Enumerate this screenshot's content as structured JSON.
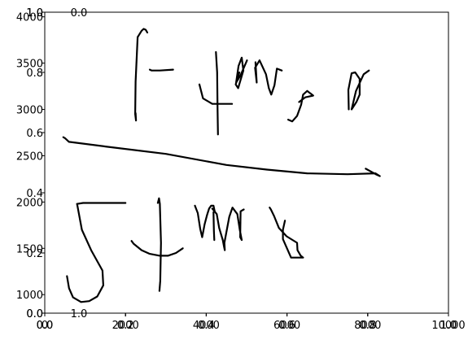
{
  "chart_data": {
    "type": "line",
    "title": "",
    "xlabel": "",
    "ylabel": "",
    "axes": [
      {
        "name": "outer-axes",
        "x_ticks": [
          {
            "value": 0.0,
            "label": "0.0"
          },
          {
            "value": 0.2,
            "label": "0.2"
          },
          {
            "value": 0.4,
            "label": "0.4"
          },
          {
            "value": 0.6,
            "label": "0.6"
          },
          {
            "value": 0.8,
            "label": "0.8"
          },
          {
            "value": 1.0,
            "label": "1.0"
          }
        ],
        "y_ticks": [
          {
            "value": 0.0,
            "label": "0.0"
          },
          {
            "value": 0.2,
            "label": "0.2"
          },
          {
            "value": 0.4,
            "label": "0.4"
          },
          {
            "value": 0.6,
            "label": "0.6"
          },
          {
            "value": 0.8,
            "label": "0.8"
          },
          {
            "value": 1.0,
            "label": "1.0"
          }
        ],
        "xlim": [
          0,
          1
        ],
        "ylim": [
          0,
          1
        ]
      },
      {
        "name": "ink-axes",
        "x_ticks": [
          {
            "value": 0,
            "label": "0"
          },
          {
            "value": 2000,
            "label": "2000"
          },
          {
            "value": 4000,
            "label": "4000"
          },
          {
            "value": 6000,
            "label": "6000"
          },
          {
            "value": 8000,
            "label": "8000"
          },
          {
            "value": 10000,
            "label": "10000"
          }
        ],
        "y_ticks": [
          {
            "value": 1000,
            "label": "1000"
          },
          {
            "value": 1500,
            "label": "1500"
          },
          {
            "value": 2000,
            "label": "2000"
          },
          {
            "value": 2500,
            "label": "2500"
          },
          {
            "value": 3000,
            "label": "3000"
          },
          {
            "value": 3500,
            "label": "3500"
          },
          {
            "value": 4000,
            "label": "4000"
          }
        ],
        "xlim": [
          0,
          10000
        ],
        "ylim": [
          800,
          4050
        ]
      },
      {
        "name": "hidden-axes",
        "x_ticks": [
          {
            "value": 0.0,
            "label": "0.0"
          },
          {
            "value": 0.2,
            "label": "0.2"
          },
          {
            "value": 0.4,
            "label": "0.4"
          },
          {
            "value": 0.6,
            "label": "0.6"
          },
          {
            "value": 0.8,
            "label": "0.8"
          },
          {
            "value": 1.0,
            "label": "1.0"
          }
        ],
        "y_ticks": [
          {
            "value": 0.0,
            "label": "0.0"
          },
          {
            "value": 1.0,
            "label": "1.0"
          }
        ],
        "xlim": [
          0,
          1
        ],
        "ylim": [
          0,
          1
        ]
      }
    ],
    "strokes": [
      [
        [
          2300,
          3780
        ],
        [
          2400,
          3850
        ],
        [
          2450,
          3870
        ],
        [
          2500,
          3860
        ],
        [
          2540,
          3830
        ]
      ],
      [
        [
          2300,
          3780
        ],
        [
          2250,
          3300
        ],
        [
          2240,
          2950
        ],
        [
          2260,
          2880
        ],
        [
          2250,
          2960
        ]
      ],
      [
        [
          2600,
          3430
        ],
        [
          2650,
          3420
        ],
        [
          2850,
          3420
        ],
        [
          3180,
          3430
        ]
      ],
      [
        [
          4240,
          3620
        ],
        [
          4270,
          3400
        ],
        [
          4280,
          3000
        ],
        [
          4290,
          2730
        ]
      ],
      [
        [
          3830,
          3270
        ],
        [
          3920,
          3120
        ],
        [
          4150,
          3060
        ],
        [
          4640,
          3060
        ]
      ],
      [
        [
          4820,
          3400
        ],
        [
          4730,
          3270
        ],
        [
          4790,
          3230
        ],
        [
          4920,
          3420
        ],
        [
          4880,
          3560
        ],
        [
          4800,
          3470
        ],
        [
          4740,
          3290
        ],
        [
          4850,
          3370
        ],
        [
          5010,
          3530
        ]
      ],
      [
        [
          5220,
          3510
        ],
        [
          5250,
          3290
        ],
        [
          5210,
          3450
        ],
        [
          5320,
          3530
        ],
        [
          5480,
          3380
        ],
        [
          5550,
          3230
        ],
        [
          5610,
          3160
        ],
        [
          5690,
          3260
        ],
        [
          5750,
          3440
        ],
        [
          5870,
          3420
        ]
      ],
      [
        [
          6030,
          2890
        ],
        [
          6130,
          2870
        ],
        [
          6250,
          2930
        ],
        [
          6350,
          3050
        ],
        [
          6400,
          3160
        ],
        [
          6500,
          3200
        ],
        [
          6650,
          3150
        ],
        [
          6450,
          3130
        ],
        [
          6300,
          3080
        ]
      ],
      [
        [
          7530,
          3000
        ],
        [
          7520,
          3210
        ],
        [
          7600,
          3390
        ],
        [
          7690,
          3400
        ],
        [
          7800,
          3330
        ],
        [
          7800,
          3160
        ],
        [
          7720,
          3080
        ],
        [
          7600,
          3000
        ],
        [
          7710,
          3200
        ],
        [
          7900,
          3380
        ],
        [
          8030,
          3420
        ]
      ],
      [
        [
          460,
          2700
        ],
        [
          500,
          2690
        ],
        [
          600,
          2650
        ],
        [
          1500,
          2600
        ],
        [
          3000,
          2520
        ],
        [
          4500,
          2400
        ],
        [
          5500,
          2350
        ],
        [
          6500,
          2310
        ],
        [
          7500,
          2300
        ],
        [
          8190,
          2310
        ],
        [
          8300,
          2280
        ],
        [
          8200,
          2300
        ],
        [
          7950,
          2360
        ]
      ],
      [
        [
          800,
          1980
        ],
        [
          950,
          1990
        ],
        [
          1500,
          1990
        ],
        [
          2000,
          1990
        ]
      ],
      [
        [
          800,
          1980
        ],
        [
          920,
          1700
        ],
        [
          1150,
          1480
        ],
        [
          1430,
          1260
        ],
        [
          1450,
          1100
        ],
        [
          1300,
          980
        ],
        [
          1100,
          930
        ],
        [
          900,
          920
        ],
        [
          700,
          970
        ],
        [
          600,
          1070
        ],
        [
          550,
          1200
        ]
      ],
      [
        [
          2800,
          1990
        ],
        [
          2830,
          2040
        ],
        [
          2850,
          1980
        ],
        [
          2880,
          1560
        ],
        [
          2860,
          1150
        ],
        [
          2840,
          1040
        ]
      ],
      [
        [
          2150,
          1580
        ],
        [
          2200,
          1550
        ],
        [
          2400,
          1480
        ],
        [
          2600,
          1440
        ],
        [
          2850,
          1420
        ],
        [
          3050,
          1420
        ],
        [
          3250,
          1450
        ],
        [
          3420,
          1500
        ]
      ],
      [
        [
          3720,
          1960
        ],
        [
          3790,
          1880
        ],
        [
          3850,
          1710
        ],
        [
          3900,
          1620
        ],
        [
          3960,
          1760
        ],
        [
          4020,
          1860
        ],
        [
          4070,
          1930
        ],
        [
          4120,
          1960
        ],
        [
          4180,
          1960
        ],
        [
          4210,
          1900
        ],
        [
          4180,
          1890
        ],
        [
          4190,
          1690
        ],
        [
          4200,
          1590
        ]
      ],
      [
        [
          4150,
          1930
        ],
        [
          4260,
          1870
        ],
        [
          4320,
          1720
        ],
        [
          4410,
          1590
        ],
        [
          4440,
          1520
        ],
        [
          4460,
          1480
        ],
        [
          4450,
          1560
        ],
        [
          4510,
          1700
        ],
        [
          4570,
          1840
        ],
        [
          4650,
          1940
        ],
        [
          4770,
          1870
        ],
        [
          4830,
          1700
        ],
        [
          4880,
          1590
        ],
        [
          4840,
          1620
        ],
        [
          4850,
          1900
        ],
        [
          4930,
          1920
        ]
      ],
      [
        [
          5570,
          1940
        ],
        [
          5600,
          1920
        ],
        [
          5680,
          1850
        ],
        [
          5800,
          1720
        ],
        [
          5990,
          1630
        ],
        [
          6250,
          1560
        ],
        [
          6260,
          1480
        ],
        [
          6340,
          1420
        ],
        [
          6400,
          1400
        ],
        [
          6300,
          1400
        ],
        [
          6100,
          1400
        ],
        [
          6000,
          1500
        ],
        [
          5900,
          1600
        ],
        [
          5900,
          1700
        ],
        [
          5950,
          1800
        ]
      ]
    ]
  }
}
